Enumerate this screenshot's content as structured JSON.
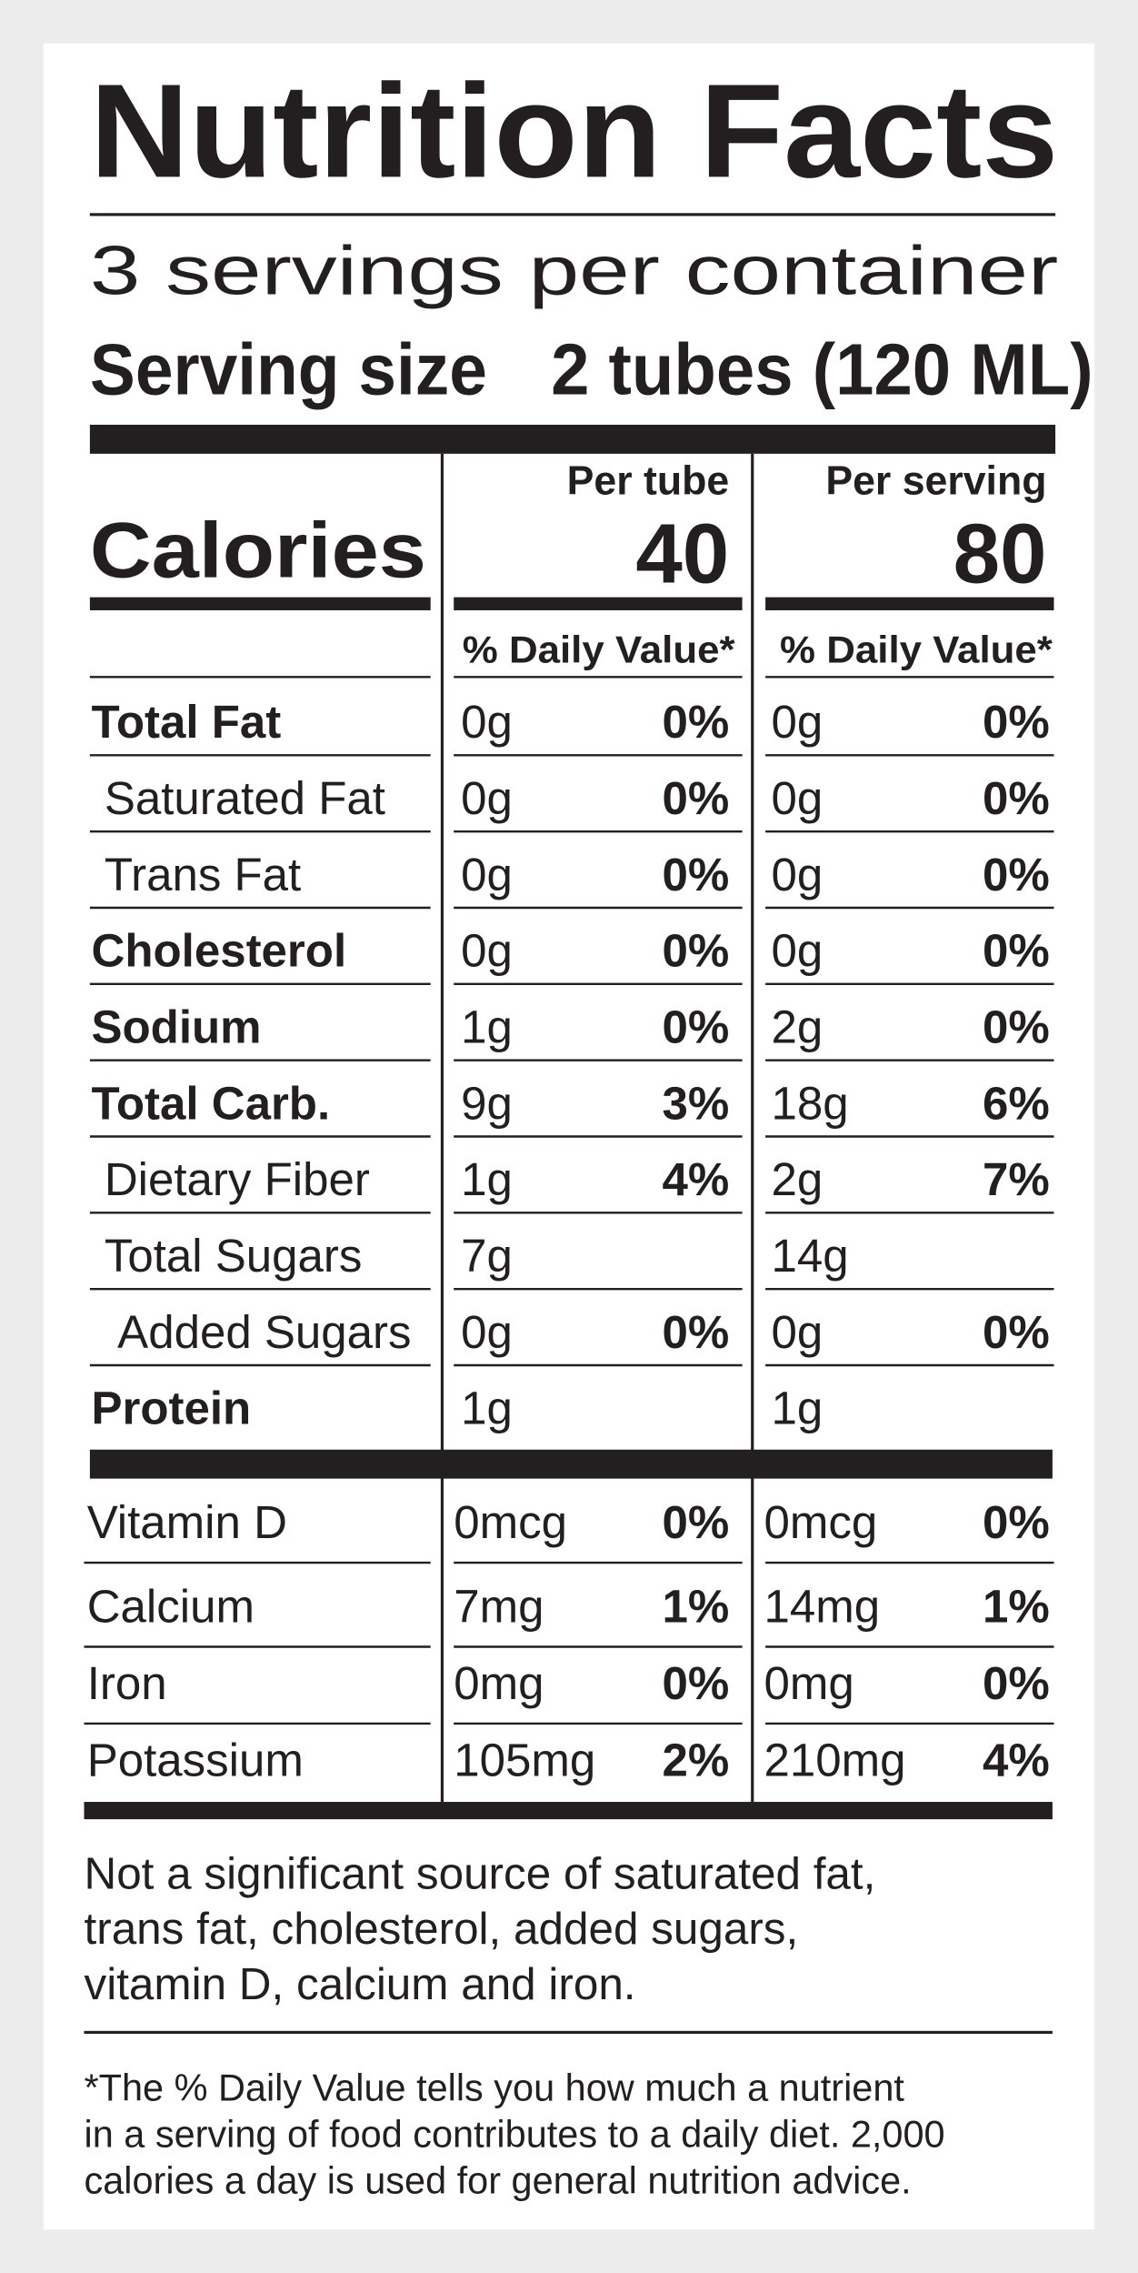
{
  "title": "Nutrition Facts",
  "servings": "3 servings per container",
  "serving_size": {
    "label": "Serving size",
    "value": "2 tubes (120 ML)"
  },
  "calories": {
    "label": "Calories",
    "columns": [
      {
        "header": "Per tube",
        "value": "40"
      },
      {
        "header": "Per serving",
        "value": "80"
      }
    ]
  },
  "daily_value_header": [
    "% Daily Value*",
    "% Daily Value*"
  ],
  "nutrients": [
    {
      "name": "Total Fat",
      "bold": true,
      "indent": 0,
      "per_tube": [
        "0g",
        "0%"
      ],
      "per_serving": [
        "0g",
        "0%"
      ]
    },
    {
      "name": "Saturated Fat",
      "bold": false,
      "indent": 1,
      "per_tube": [
        "0g",
        "0%"
      ],
      "per_serving": [
        "0g",
        "0%"
      ]
    },
    {
      "name": "Trans Fat",
      "bold": false,
      "indent": 1,
      "per_tube": [
        "0g",
        "0%"
      ],
      "per_serving": [
        "0g",
        "0%"
      ]
    },
    {
      "name": "Cholesterol",
      "bold": true,
      "indent": 0,
      "per_tube": [
        "0g",
        "0%"
      ],
      "per_serving": [
        "0g",
        "0%"
      ]
    },
    {
      "name": "Sodium",
      "bold": true,
      "indent": 0,
      "per_tube": [
        "1g",
        "0%"
      ],
      "per_serving": [
        "2g",
        "0%"
      ]
    },
    {
      "name": "Total Carb.",
      "bold": true,
      "indent": 0,
      "per_tube": [
        "9g",
        "3%"
      ],
      "per_serving": [
        "18g",
        "6%"
      ]
    },
    {
      "name": "Dietary Fiber",
      "bold": false,
      "indent": 1,
      "per_tube": [
        "1g",
        "4%"
      ],
      "per_serving": [
        "2g",
        "7%"
      ]
    },
    {
      "name": "Total Sugars",
      "bold": false,
      "indent": 1,
      "per_tube": [
        "7g",
        null
      ],
      "per_serving": [
        "14g",
        null
      ]
    },
    {
      "name": "Added Sugars",
      "bold": false,
      "indent": 2,
      "per_tube": [
        "0g",
        "0%"
      ],
      "per_serving": [
        "0g",
        "0%"
      ]
    },
    {
      "name": "Protein",
      "bold": true,
      "indent": 0,
      "per_tube": [
        "1g",
        null
      ],
      "per_serving": [
        "1g",
        null
      ]
    }
  ],
  "vitamins": [
    {
      "name": "Vitamin D",
      "per_tube": [
        "0mcg",
        "0%"
      ],
      "per_serving": [
        "0mcg",
        "0%"
      ]
    },
    {
      "name": "Calcium",
      "per_tube": [
        "7mg",
        "1%"
      ],
      "per_serving": [
        "14mg",
        "1%"
      ]
    },
    {
      "name": "Iron",
      "per_tube": [
        "0mg",
        "0%"
      ],
      "per_serving": [
        "0mg",
        "0%"
      ]
    },
    {
      "name": "Potassium",
      "per_tube": [
        "105mg",
        "2%"
      ],
      "per_serving": [
        "210mg",
        "4%"
      ]
    }
  ],
  "not_significant": [
    "Not a significant source of saturated fat,",
    "trans fat, cholesterol, added sugars,",
    "vitamin D, calcium and iron."
  ],
  "footnote": [
    "*The % Daily Value tells you how much a nutrient",
    "in a serving of food contributes to a daily diet. 2,000",
    "calories a day is used for general nutrition advice."
  ]
}
